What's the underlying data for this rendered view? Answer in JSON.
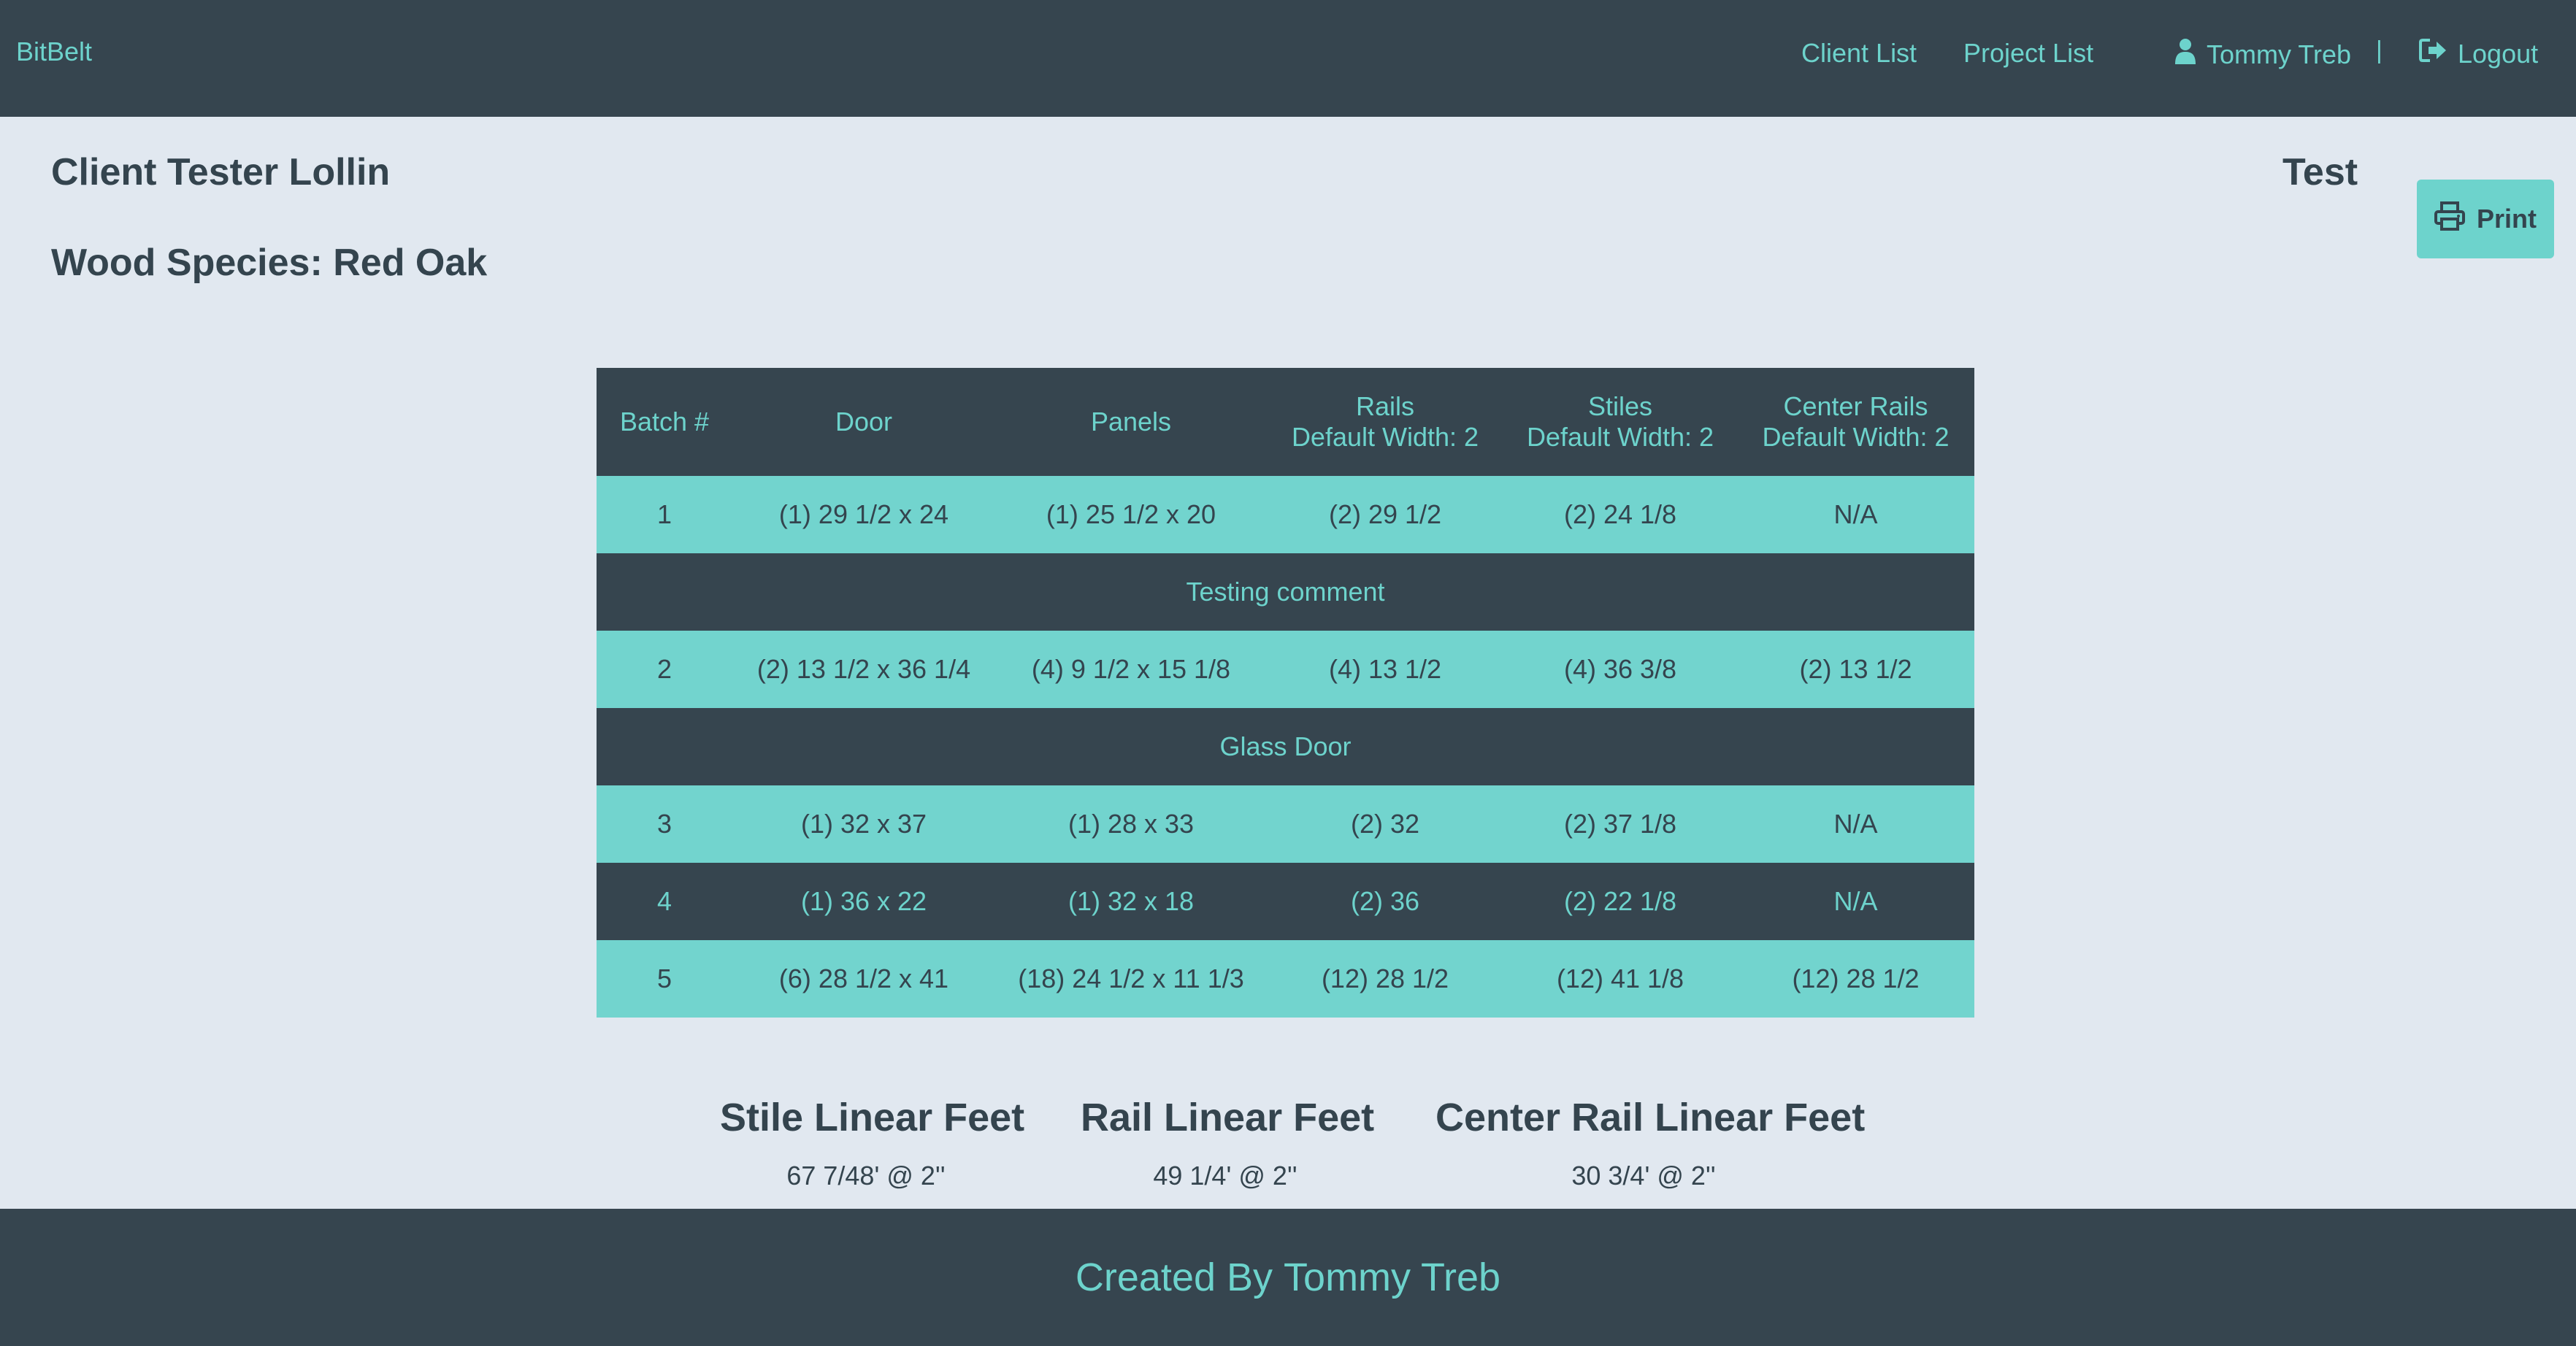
{
  "nav": {
    "brand": "BitBelt",
    "client_list": "Client List",
    "project_list": "Project List",
    "user": "Tommy Treb",
    "separator": "|",
    "logout": "Logout"
  },
  "header": {
    "client": "Client Tester Lollin",
    "species": "Wood Species: Red Oak",
    "project": "Test",
    "print": "Print"
  },
  "table": {
    "columns": {
      "batch": "Batch #",
      "door": "Door",
      "panels": "Panels",
      "rails": "Rails",
      "rails_sub": "Default Width: 2",
      "stiles": "Stiles",
      "stiles_sub": "Default Width: 2",
      "center_rails": "Center Rails",
      "center_rails_sub": "Default Width: 2"
    },
    "rows": [
      {
        "batch": "1",
        "door": "(1) 29 1/2 x 24",
        "panels": "(1) 25 1/2 x 20",
        "rails": "(2) 29 1/2",
        "stiles": "(2) 24 1/8",
        "center_rails": "N/A"
      },
      {
        "batch": "2",
        "door": "(2) 13 1/2 x 36 1/4",
        "panels": "(4) 9 1/2 x 15 1/8",
        "rails": "(4) 13 1/2",
        "stiles": "(4) 36 3/8",
        "center_rails": "(2) 13 1/2"
      },
      {
        "batch": "3",
        "door": "(1) 32 x 37",
        "panels": "(1) 28 x 33",
        "rails": "(2) 32",
        "stiles": "(2) 37 1/8",
        "center_rails": "N/A"
      },
      {
        "batch": "4",
        "door": "(1) 36 x 22",
        "panels": "(1) 32 x 18",
        "rails": "(2) 36",
        "stiles": "(2) 22 1/8",
        "center_rails": "N/A"
      },
      {
        "batch": "5",
        "door": "(6) 28 1/2 x 41",
        "panels": "(18) 24 1/2 x 11 1/3",
        "rails": "(12) 28 1/2",
        "stiles": "(12) 41 1/8",
        "center_rails": "(12) 28 1/2"
      }
    ],
    "comments": [
      "Testing comment",
      "Glass Door"
    ]
  },
  "summary": {
    "stile_title": "Stile Linear Feet",
    "stile_value": "67 7/48' @ 2''",
    "rail_title": "Rail Linear Feet",
    "rail_value": "49 1/4' @ 2''",
    "center_title": "Center Rail Linear Feet",
    "center_value": "30 3/4' @ 2''"
  },
  "footer": {
    "prefix": "Created By ",
    "author": "Tommy Treb"
  },
  "colors": {
    "navbar": "#36454f",
    "accent": "#6dd3cc",
    "row_light": "#72d4ce",
    "background": "#e1e8f0",
    "text": "#34444e"
  }
}
